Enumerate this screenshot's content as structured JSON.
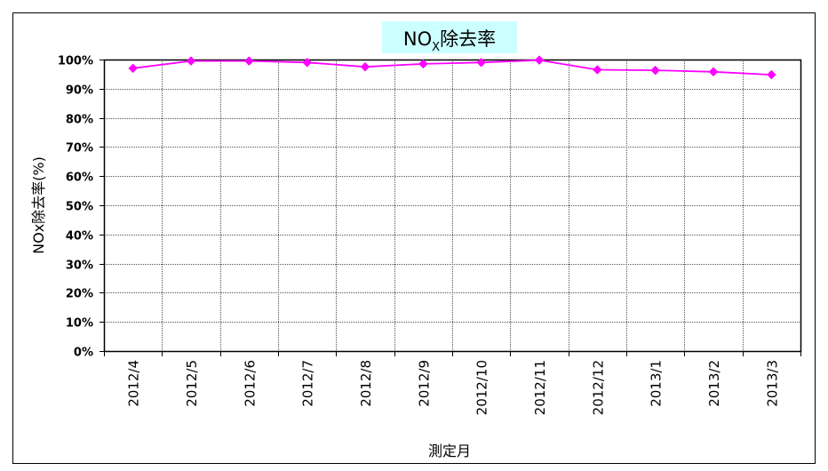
{
  "chart_data": {
    "type": "line",
    "title": "NO",
    "title_subscript": "X",
    "title_suffix": "除去率",
    "xlabel": "測定月",
    "ylabel": "NOx除去率(%)",
    "categories": [
      "2012/4",
      "2012/5",
      "2012/6",
      "2012/7",
      "2012/8",
      "2012/9",
      "2012/10",
      "2012/11",
      "2012/12",
      "2013/1",
      "2013/2",
      "2013/3"
    ],
    "series": [
      {
        "values": [
          97.0,
          99.5,
          99.5,
          99.0,
          97.5,
          98.5,
          99.0,
          99.8,
          96.5,
          96.3,
          95.8,
          94.8
        ]
      }
    ],
    "ylim": [
      0,
      100
    ],
    "yticks": [
      "0%",
      "10%",
      "20%",
      "30%",
      "40%",
      "50%",
      "60%",
      "70%",
      "80%",
      "90%",
      "100%"
    ],
    "grid": true,
    "legend": "none",
    "colors": {
      "series": "#ff00ff",
      "title_background": "#ccffff",
      "grid": "#555555",
      "axis": "#000000",
      "border": "#000000"
    }
  }
}
